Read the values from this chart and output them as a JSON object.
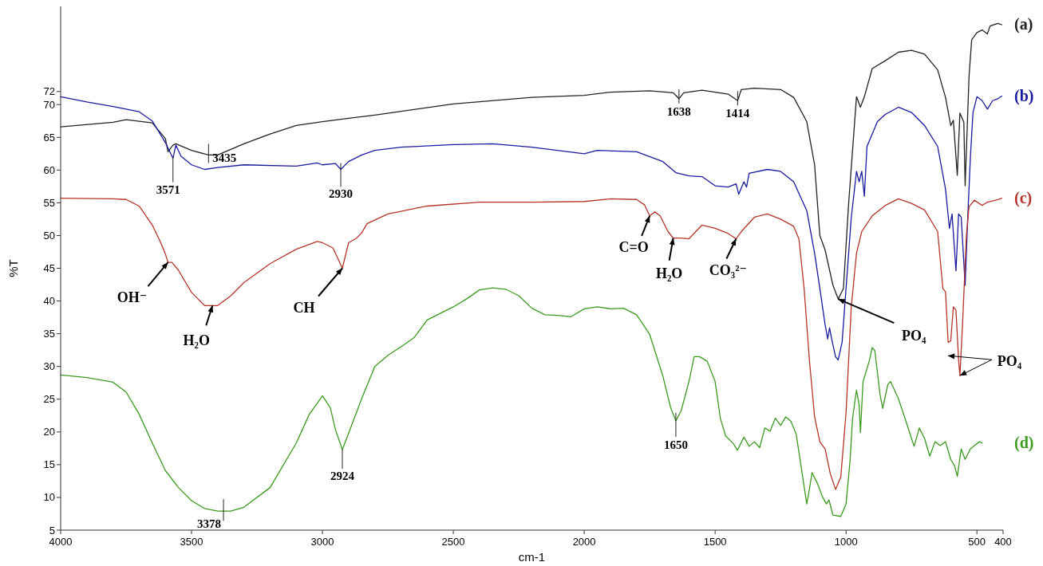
{
  "chart_data": {
    "type": "line",
    "xlabel": "cm-1",
    "ylabel": "%T",
    "xlim": [
      4000,
      400
    ],
    "ylim": [
      5,
      85
    ],
    "xticks": [
      4000,
      3500,
      3000,
      2500,
      2000,
      1500,
      1000,
      500,
      400
    ],
    "yticks": [
      5,
      10,
      15,
      20,
      25,
      30,
      35,
      40,
      45,
      50,
      55,
      60,
      65,
      70,
      72
    ],
    "grid": false,
    "marker": "none",
    "line_style": "solid",
    "series": [
      {
        "name": "(a)",
        "color": "#222222",
        "x": [
          4000,
          3800,
          3750,
          3650,
          3600,
          3590,
          3571,
          3560,
          3500,
          3435,
          3400,
          3300,
          3200,
          3100,
          3000,
          2900,
          2800,
          2500,
          2200,
          2000,
          1900,
          1750,
          1660,
          1638,
          1620,
          1550,
          1450,
          1414,
          1400,
          1350,
          1250,
          1200,
          1150,
          1120,
          1100,
          1080,
          1050,
          1030,
          1010,
          990,
          960,
          945,
          930,
          900,
          850,
          800,
          750,
          700,
          650,
          620,
          600,
          590,
          575,
          565,
          550,
          545,
          530,
          520,
          500,
          480,
          460,
          450,
          420,
          405
        ],
        "values": [
          66.6,
          67.3,
          67.7,
          67.2,
          64.8,
          62.8,
          63.8,
          64.0,
          63.0,
          62.3,
          62.3,
          64.0,
          65.5,
          66.8,
          67.4,
          67.9,
          68.4,
          70.1,
          71.1,
          71.4,
          71.9,
          72.1,
          71.8,
          70.9,
          71.8,
          72.2,
          71.6,
          70.6,
          72.3,
          72.5,
          72.3,
          71.1,
          67.4,
          60.8,
          50.0,
          47.8,
          42.4,
          40.3,
          41.9,
          54.9,
          71.2,
          69.6,
          71.2,
          75.5,
          76.7,
          78.0,
          78.3,
          77.7,
          75.3,
          71.1,
          66.8,
          67.6,
          59.2,
          68.7,
          67.3,
          57.6,
          74.4,
          79.9,
          81.0,
          81.4,
          80.8,
          82.0,
          82.4,
          82.2
        ]
      },
      {
        "name": "(b)",
        "color": "#1a1aa0",
        "x": [
          4000,
          3900,
          3800,
          3700,
          3650,
          3600,
          3571,
          3560,
          3540,
          3500,
          3450,
          3400,
          3300,
          3100,
          3020,
          3000,
          2950,
          2930,
          2900,
          2850,
          2800,
          2700,
          2500,
          2350,
          2200,
          2000,
          1950,
          1800,
          1700,
          1650,
          1600,
          1550,
          1500,
          1450,
          1420,
          1410,
          1390,
          1380,
          1370,
          1300,
          1250,
          1200,
          1150,
          1120,
          1100,
          1080,
          1070,
          1063,
          1055,
          1040,
          1030,
          1015,
          1000,
          980,
          960,
          950,
          940,
          930,
          920,
          880,
          850,
          800,
          750,
          700,
          650,
          620,
          605,
          595,
          580,
          570,
          560,
          545,
          535,
          525,
          515,
          500,
          480,
          460,
          440,
          420,
          405
        ],
        "values": [
          71.2,
          70.4,
          69.7,
          68.9,
          67.5,
          64.2,
          61.8,
          63.8,
          62.1,
          60.8,
          60.1,
          60.4,
          60.8,
          60.6,
          61.1,
          60.8,
          61.0,
          60.1,
          61.3,
          62.3,
          63.0,
          63.5,
          63.9,
          64.0,
          63.5,
          62.5,
          63.0,
          62.8,
          61.3,
          59.6,
          59.1,
          59.0,
          57.6,
          57.4,
          57.9,
          56.3,
          58.2,
          57.4,
          59.5,
          60.1,
          59.8,
          58.2,
          53.8,
          47.3,
          41.9,
          36.4,
          34.2,
          35.9,
          34.2,
          31.5,
          31.0,
          33.7,
          41.9,
          52.7,
          59.8,
          58.2,
          59.8,
          56.0,
          63.6,
          67.4,
          68.5,
          69.6,
          68.8,
          66.8,
          63.6,
          57.1,
          51.1,
          53.3,
          44.6,
          53.3,
          52.8,
          42.4,
          52.8,
          61.9,
          68.8,
          71.2,
          70.6,
          69.3,
          70.6,
          70.9,
          71.3
        ]
      },
      {
        "name": "(c)",
        "color": "#b5342a",
        "x": [
          4000,
          3800,
          3750,
          3700,
          3650,
          3620,
          3600,
          3590,
          3575,
          3550,
          3500,
          3450,
          3400,
          3350,
          3300,
          3200,
          3100,
          3020,
          3000,
          2960,
          2940,
          2924,
          2900,
          2870,
          2850,
          2830,
          2750,
          2600,
          2400,
          2200,
          2000,
          1900,
          1800,
          1770,
          1750,
          1730,
          1710,
          1680,
          1660,
          1630,
          1600,
          1550,
          1500,
          1450,
          1420,
          1400,
          1350,
          1300,
          1250,
          1200,
          1180,
          1160,
          1140,
          1120,
          1100,
          1080,
          1060,
          1040,
          1020,
          1000,
          980,
          960,
          940,
          900,
          850,
          800,
          750,
          700,
          650,
          630,
          620,
          610,
          600,
          590,
          580,
          570,
          565,
          555,
          540,
          530,
          510,
          480,
          460,
          420,
          405
        ],
        "values": [
          55.7,
          55.6,
          55.5,
          54.5,
          51.6,
          49.1,
          47.2,
          45.9,
          45.9,
          44.7,
          41.3,
          39.3,
          39.3,
          40.8,
          42.8,
          45.7,
          47.9,
          49.1,
          48.9,
          48.1,
          46.4,
          45.0,
          48.9,
          49.6,
          50.4,
          51.8,
          53.3,
          54.5,
          55.1,
          55.1,
          55.2,
          55.6,
          55.5,
          54.7,
          53.0,
          53.6,
          53.0,
          50.6,
          49.6,
          49.6,
          49.5,
          51.6,
          51.1,
          50.3,
          49.5,
          50.6,
          52.8,
          53.3,
          52.5,
          51.4,
          49.5,
          41.9,
          31.0,
          22.3,
          18.5,
          17.4,
          13.6,
          11.2,
          13.1,
          22.9,
          39.1,
          47.3,
          50.6,
          53.0,
          54.6,
          55.6,
          54.9,
          53.9,
          50.6,
          41.9,
          41.4,
          33.7,
          33.9,
          39.1,
          38.6,
          31.0,
          28.6,
          36.4,
          50.1,
          54.4,
          55.4,
          54.6,
          55.1,
          55.5,
          55.7
        ]
      },
      {
        "name": "(d)",
        "color": "#3c9a1e",
        "x": [
          4000,
          3900,
          3800,
          3750,
          3700,
          3650,
          3600,
          3550,
          3500,
          3450,
          3400,
          3350,
          3300,
          3200,
          3100,
          3050,
          3000,
          2970,
          2950,
          2924,
          2900,
          2850,
          2800,
          2750,
          2700,
          2650,
          2600,
          2550,
          2500,
          2450,
          2400,
          2350,
          2300,
          2250,
          2200,
          2150,
          2100,
          2050,
          2000,
          1950,
          1900,
          1850,
          1800,
          1750,
          1700,
          1670,
          1650,
          1630,
          1600,
          1580,
          1560,
          1530,
          1500,
          1480,
          1460,
          1430,
          1415,
          1390,
          1370,
          1350,
          1330,
          1310,
          1290,
          1270,
          1250,
          1230,
          1210,
          1190,
          1170,
          1150,
          1140,
          1130,
          1110,
          1090,
          1075,
          1065,
          1050,
          1020,
          1000,
          985,
          975,
          960,
          950,
          945,
          935,
          910,
          900,
          890,
          870,
          860,
          840,
          830,
          800,
          770,
          740,
          720,
          700,
          680,
          660,
          640,
          620,
          600,
          585,
          575,
          560,
          545,
          525,
          510,
          490,
          480
        ],
        "values": [
          28.7,
          28.3,
          27.6,
          26.1,
          22.7,
          18.3,
          14.1,
          11.5,
          9.5,
          8.3,
          7.9,
          7.9,
          8.5,
          11.5,
          18.3,
          22.7,
          25.5,
          23.7,
          20.3,
          17.3,
          19.8,
          25.1,
          30.0,
          31.7,
          33.0,
          34.4,
          37.1,
          38.1,
          39.1,
          40.3,
          41.7,
          42.0,
          41.8,
          40.8,
          38.9,
          37.9,
          37.8,
          37.6,
          38.8,
          39.1,
          38.8,
          38.9,
          37.9,
          34.9,
          28.6,
          23.7,
          21.7,
          23.2,
          27.7,
          31.5,
          31.5,
          30.8,
          27.7,
          22.1,
          19.4,
          18.2,
          17.2,
          19.2,
          17.8,
          18.5,
          17.6,
          20.6,
          20.1,
          22.1,
          21.0,
          22.3,
          21.6,
          19.6,
          14.3,
          9.0,
          11.2,
          13.8,
          12.2,
          10.1,
          9.0,
          9.6,
          7.3,
          7.1,
          9.0,
          15.4,
          22.1,
          26.4,
          24.2,
          19.9,
          27.7,
          31.0,
          32.9,
          32.4,
          25.7,
          23.6,
          27.3,
          27.7,
          25.1,
          21.5,
          17.8,
          20.6,
          19.0,
          16.3,
          18.5,
          17.9,
          18.5,
          15.8,
          14.8,
          13.2,
          17.4,
          15.8,
          17.4,
          17.9,
          18.5,
          18.3
        ]
      }
    ],
    "annotations": [
      {
        "text": "3571",
        "x": 3571,
        "y": 61.8
      },
      {
        "text": "3435",
        "x": 3435,
        "y": 62.3
      },
      {
        "text": "2930",
        "x": 2930,
        "y": 60.1
      },
      {
        "text": "1638",
        "x": 1638,
        "y": 70.9
      },
      {
        "text": "1414",
        "x": 1414,
        "y": 70.6
      },
      {
        "text": "2924",
        "x": 2924,
        "y": 17.3
      },
      {
        "text": "1650",
        "x": 1650,
        "y": 21.7
      },
      {
        "text": "3378",
        "x": 3378,
        "y": 7.9
      },
      {
        "text": "OH⁻",
        "x": 3590,
        "y": 45.9
      },
      {
        "text": "H₂O",
        "x": 3420,
        "y": 39.3
      },
      {
        "text": "CH",
        "x": 2924,
        "y": 45.0
      },
      {
        "text": "C=O",
        "x": 1750,
        "y": 53.0
      },
      {
        "text": "H₂O",
        "x": 1660,
        "y": 49.6
      },
      {
        "text": "CO₃²⁻",
        "x": 1420,
        "y": 49.5
      },
      {
        "text": "PO₄",
        "x": 1030,
        "y": 40.3
      },
      {
        "text": "PO₄",
        "x": 565,
        "y": 28.6
      }
    ]
  }
}
